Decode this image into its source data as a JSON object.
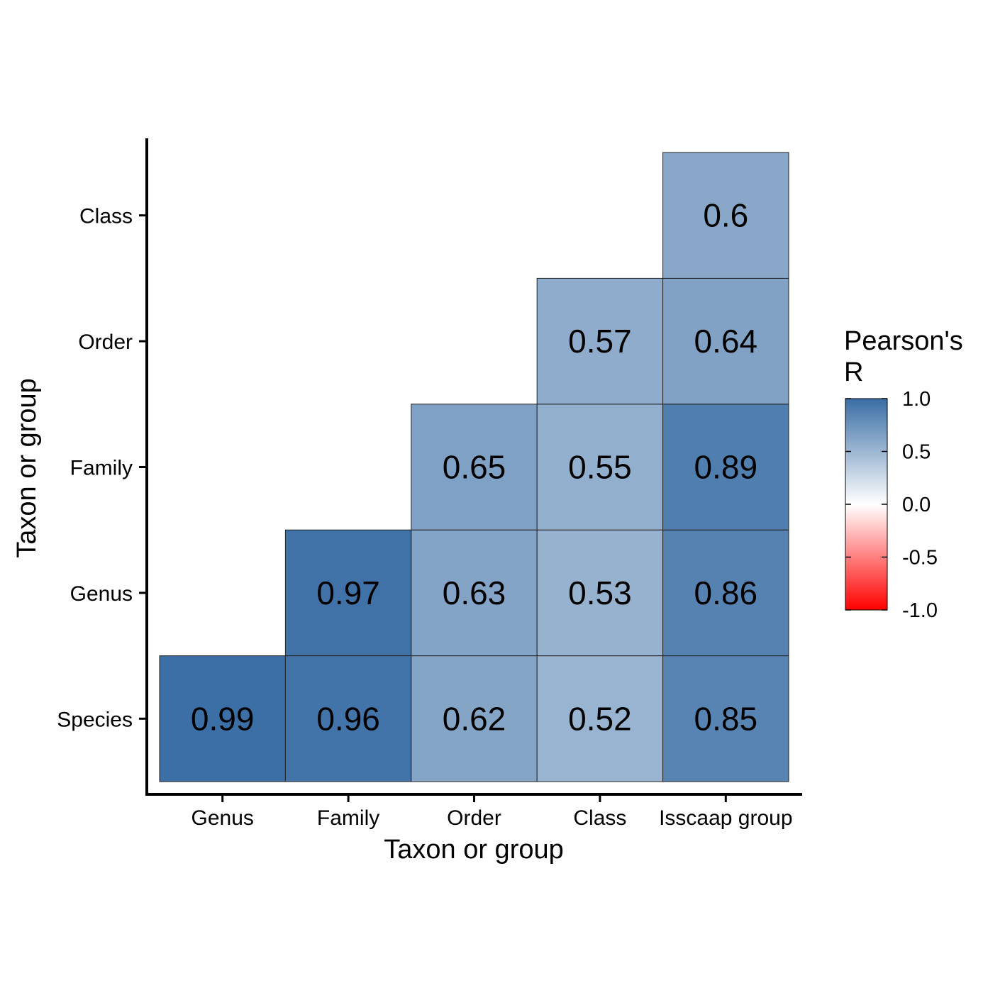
{
  "chart_data": {
    "type": "heatmap",
    "title": "",
    "xlabel": "Taxon or group",
    "ylabel": "Taxon or group",
    "x_categories": [
      "Genus",
      "Family",
      "Order",
      "Class",
      "Isscaap group"
    ],
    "y_categories": [
      "Species",
      "Genus",
      "Family",
      "Order",
      "Class"
    ],
    "cells": [
      {
        "x": "Genus",
        "y": "Species",
        "value": 0.99,
        "label": "0.99"
      },
      {
        "x": "Family",
        "y": "Species",
        "value": 0.96,
        "label": "0.96"
      },
      {
        "x": "Order",
        "y": "Species",
        "value": 0.62,
        "label": "0.62"
      },
      {
        "x": "Class",
        "y": "Species",
        "value": 0.52,
        "label": "0.52"
      },
      {
        "x": "Isscaap group",
        "y": "Species",
        "value": 0.85,
        "label": "0.85"
      },
      {
        "x": "Family",
        "y": "Genus",
        "value": 0.97,
        "label": "0.97"
      },
      {
        "x": "Order",
        "y": "Genus",
        "value": 0.63,
        "label": "0.63"
      },
      {
        "x": "Class",
        "y": "Genus",
        "value": 0.53,
        "label": "0.53"
      },
      {
        "x": "Isscaap group",
        "y": "Genus",
        "value": 0.86,
        "label": "0.86"
      },
      {
        "x": "Order",
        "y": "Family",
        "value": 0.65,
        "label": "0.65"
      },
      {
        "x": "Class",
        "y": "Family",
        "value": 0.55,
        "label": "0.55"
      },
      {
        "x": "Isscaap group",
        "y": "Family",
        "value": 0.89,
        "label": "0.89"
      },
      {
        "x": "Class",
        "y": "Order",
        "value": 0.57,
        "label": "0.57"
      },
      {
        "x": "Isscaap group",
        "y": "Order",
        "value": 0.64,
        "label": "0.64"
      },
      {
        "x": "Isscaap group",
        "y": "Class",
        "value": 0.6,
        "label": "0.6"
      }
    ],
    "legend": {
      "title_lines": [
        "Pearson's",
        "R"
      ],
      "range": [
        -1.0,
        1.0
      ],
      "ticks": [
        {
          "value": 1.0,
          "label": "1.0"
        },
        {
          "value": 0.5,
          "label": "0.5"
        },
        {
          "value": 0.0,
          "label": "0.0"
        },
        {
          "value": -0.5,
          "label": "-0.5"
        },
        {
          "value": -1.0,
          "label": "-1.0"
        }
      ],
      "placement": "right",
      "colors": {
        "low": "#ff0000",
        "mid": "#ffffff",
        "high": "#3a6ea5"
      }
    },
    "grid": false
  }
}
